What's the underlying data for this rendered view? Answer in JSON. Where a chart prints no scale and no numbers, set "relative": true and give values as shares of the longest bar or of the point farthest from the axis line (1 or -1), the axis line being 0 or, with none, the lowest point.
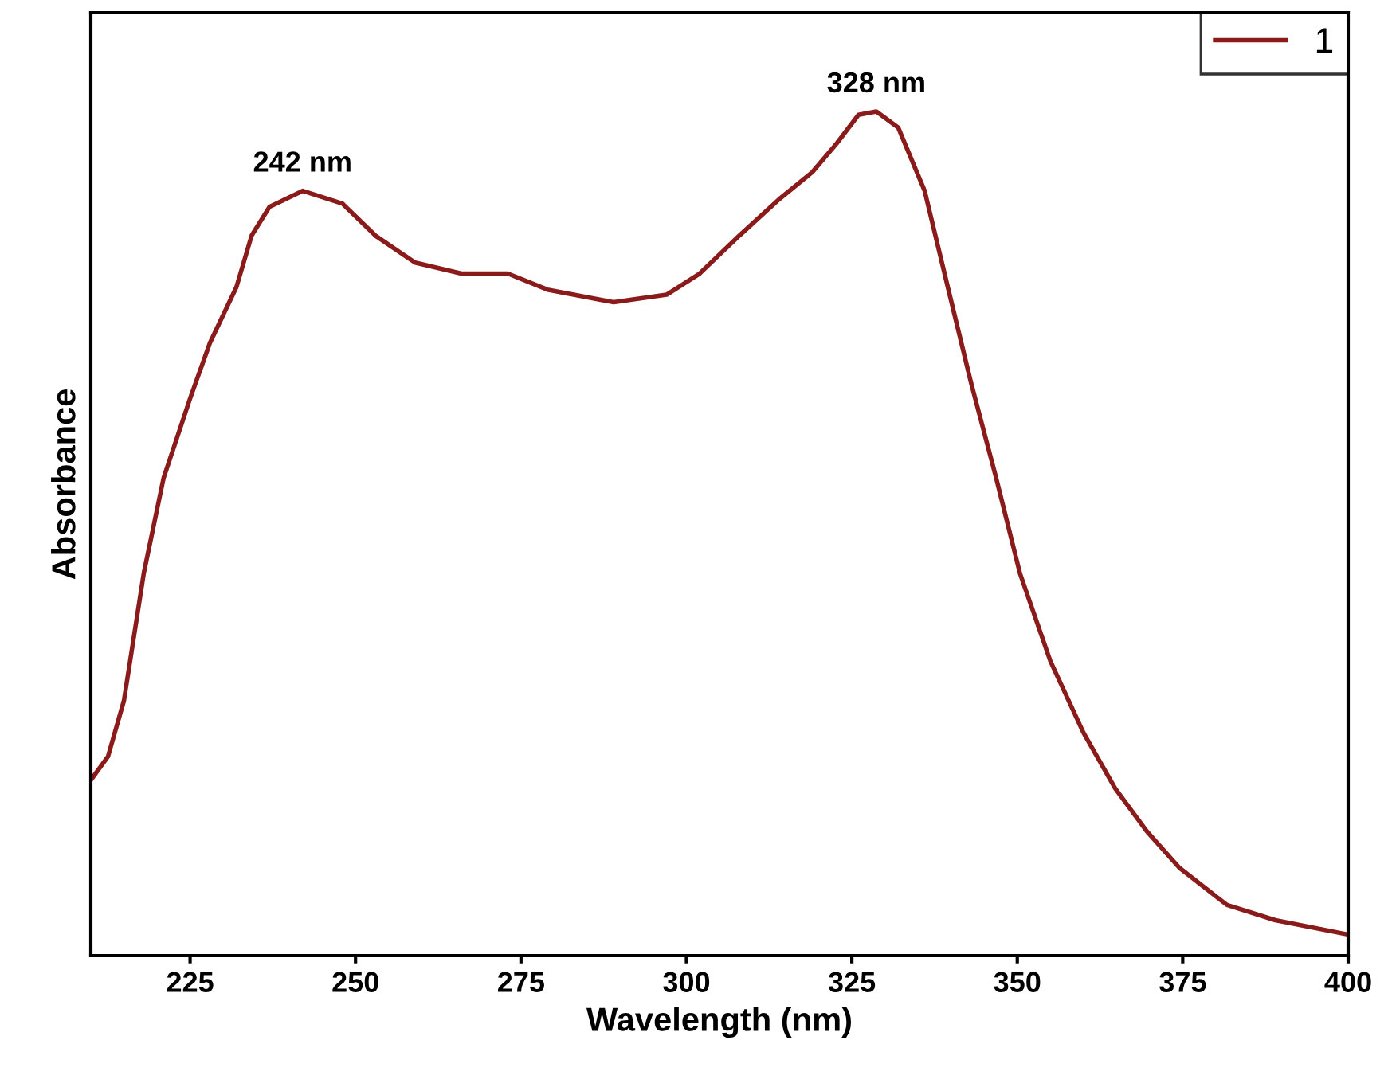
{
  "chart_data": {
    "type": "line",
    "relative": true,
    "xlabel": "Wavelength (nm)",
    "ylabel": "Absorbance",
    "xlim": [
      210,
      400
    ],
    "xticks": [
      225,
      250,
      275,
      300,
      325,
      350,
      375,
      400
    ],
    "x": [
      210,
      212.6,
      215,
      218,
      221,
      225,
      228,
      232,
      234.3,
      237,
      242,
      248,
      253,
      259,
      266,
      273,
      279,
      289,
      297,
      302,
      308,
      314,
      319,
      322.7,
      326,
      328.7,
      332,
      336,
      339.5,
      343,
      346.8,
      350.4,
      355,
      360,
      364.8,
      369.6,
      374.5,
      381.7,
      389,
      400
    ],
    "series": [
      {
        "name": "1",
        "color": "#8b1a1a",
        "values": [
          0.208,
          0.236,
          0.302,
          0.453,
          0.566,
          0.66,
          0.726,
          0.792,
          0.853,
          0.887,
          0.906,
          0.891,
          0.853,
          0.821,
          0.808,
          0.808,
          0.789,
          0.774,
          0.783,
          0.808,
          0.853,
          0.896,
          0.928,
          0.962,
          0.996,
          1.0,
          0.981,
          0.906,
          0.792,
          0.679,
          0.566,
          0.453,
          0.349,
          0.264,
          0.198,
          0.147,
          0.104,
          0.06,
          0.042,
          0.025
        ]
      }
    ],
    "annotations": [
      {
        "text": "242 nm",
        "x": 242,
        "y": 0.906
      },
      {
        "text": "328 nm",
        "x": 328.7,
        "y": 1.0
      }
    ],
    "legend": "top right",
    "line_style": "solid",
    "marker": "none",
    "grid": false
  }
}
